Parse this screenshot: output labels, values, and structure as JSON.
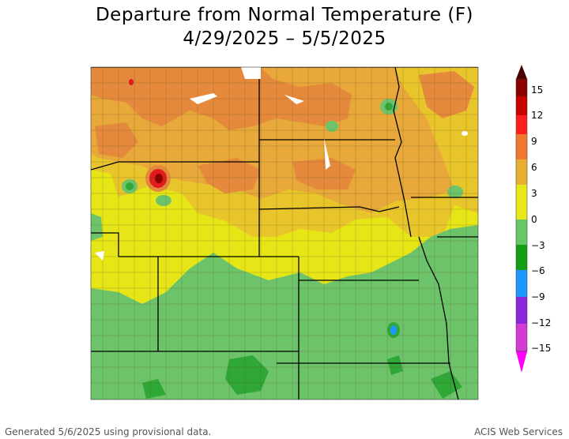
{
  "title": "Departure from Normal Temperature (F)",
  "subtitle": "4/29/2025 – 5/5/2025",
  "footer_left": "Generated 5/6/2025 using provisional data.",
  "footer_right": "ACIS Web Services",
  "legend": {
    "ticks": [
      "15",
      "12",
      "9",
      "6",
      "3",
      "0",
      "−3",
      "−6",
      "−9",
      "−12",
      "−15"
    ],
    "colors": [
      "#4a0000",
      "#c80000",
      "#ff1e1e",
      "#f07830",
      "#e8b030",
      "#e8e818",
      "#64c864",
      "#14a014",
      "#1e96ff",
      "#8c28dc",
      "#ff00ff"
    ]
  },
  "zone_colors": {
    "dark_orange": "#e58a3c",
    "orange": "#e8a83a",
    "gold": "#e9c52c",
    "yellow": "#e6e617",
    "light_green": "#6cc36a",
    "green": "#2fa838",
    "blue": "#1e96ff",
    "red": "#e21c1c",
    "dark_red": "#8a0000"
  }
}
